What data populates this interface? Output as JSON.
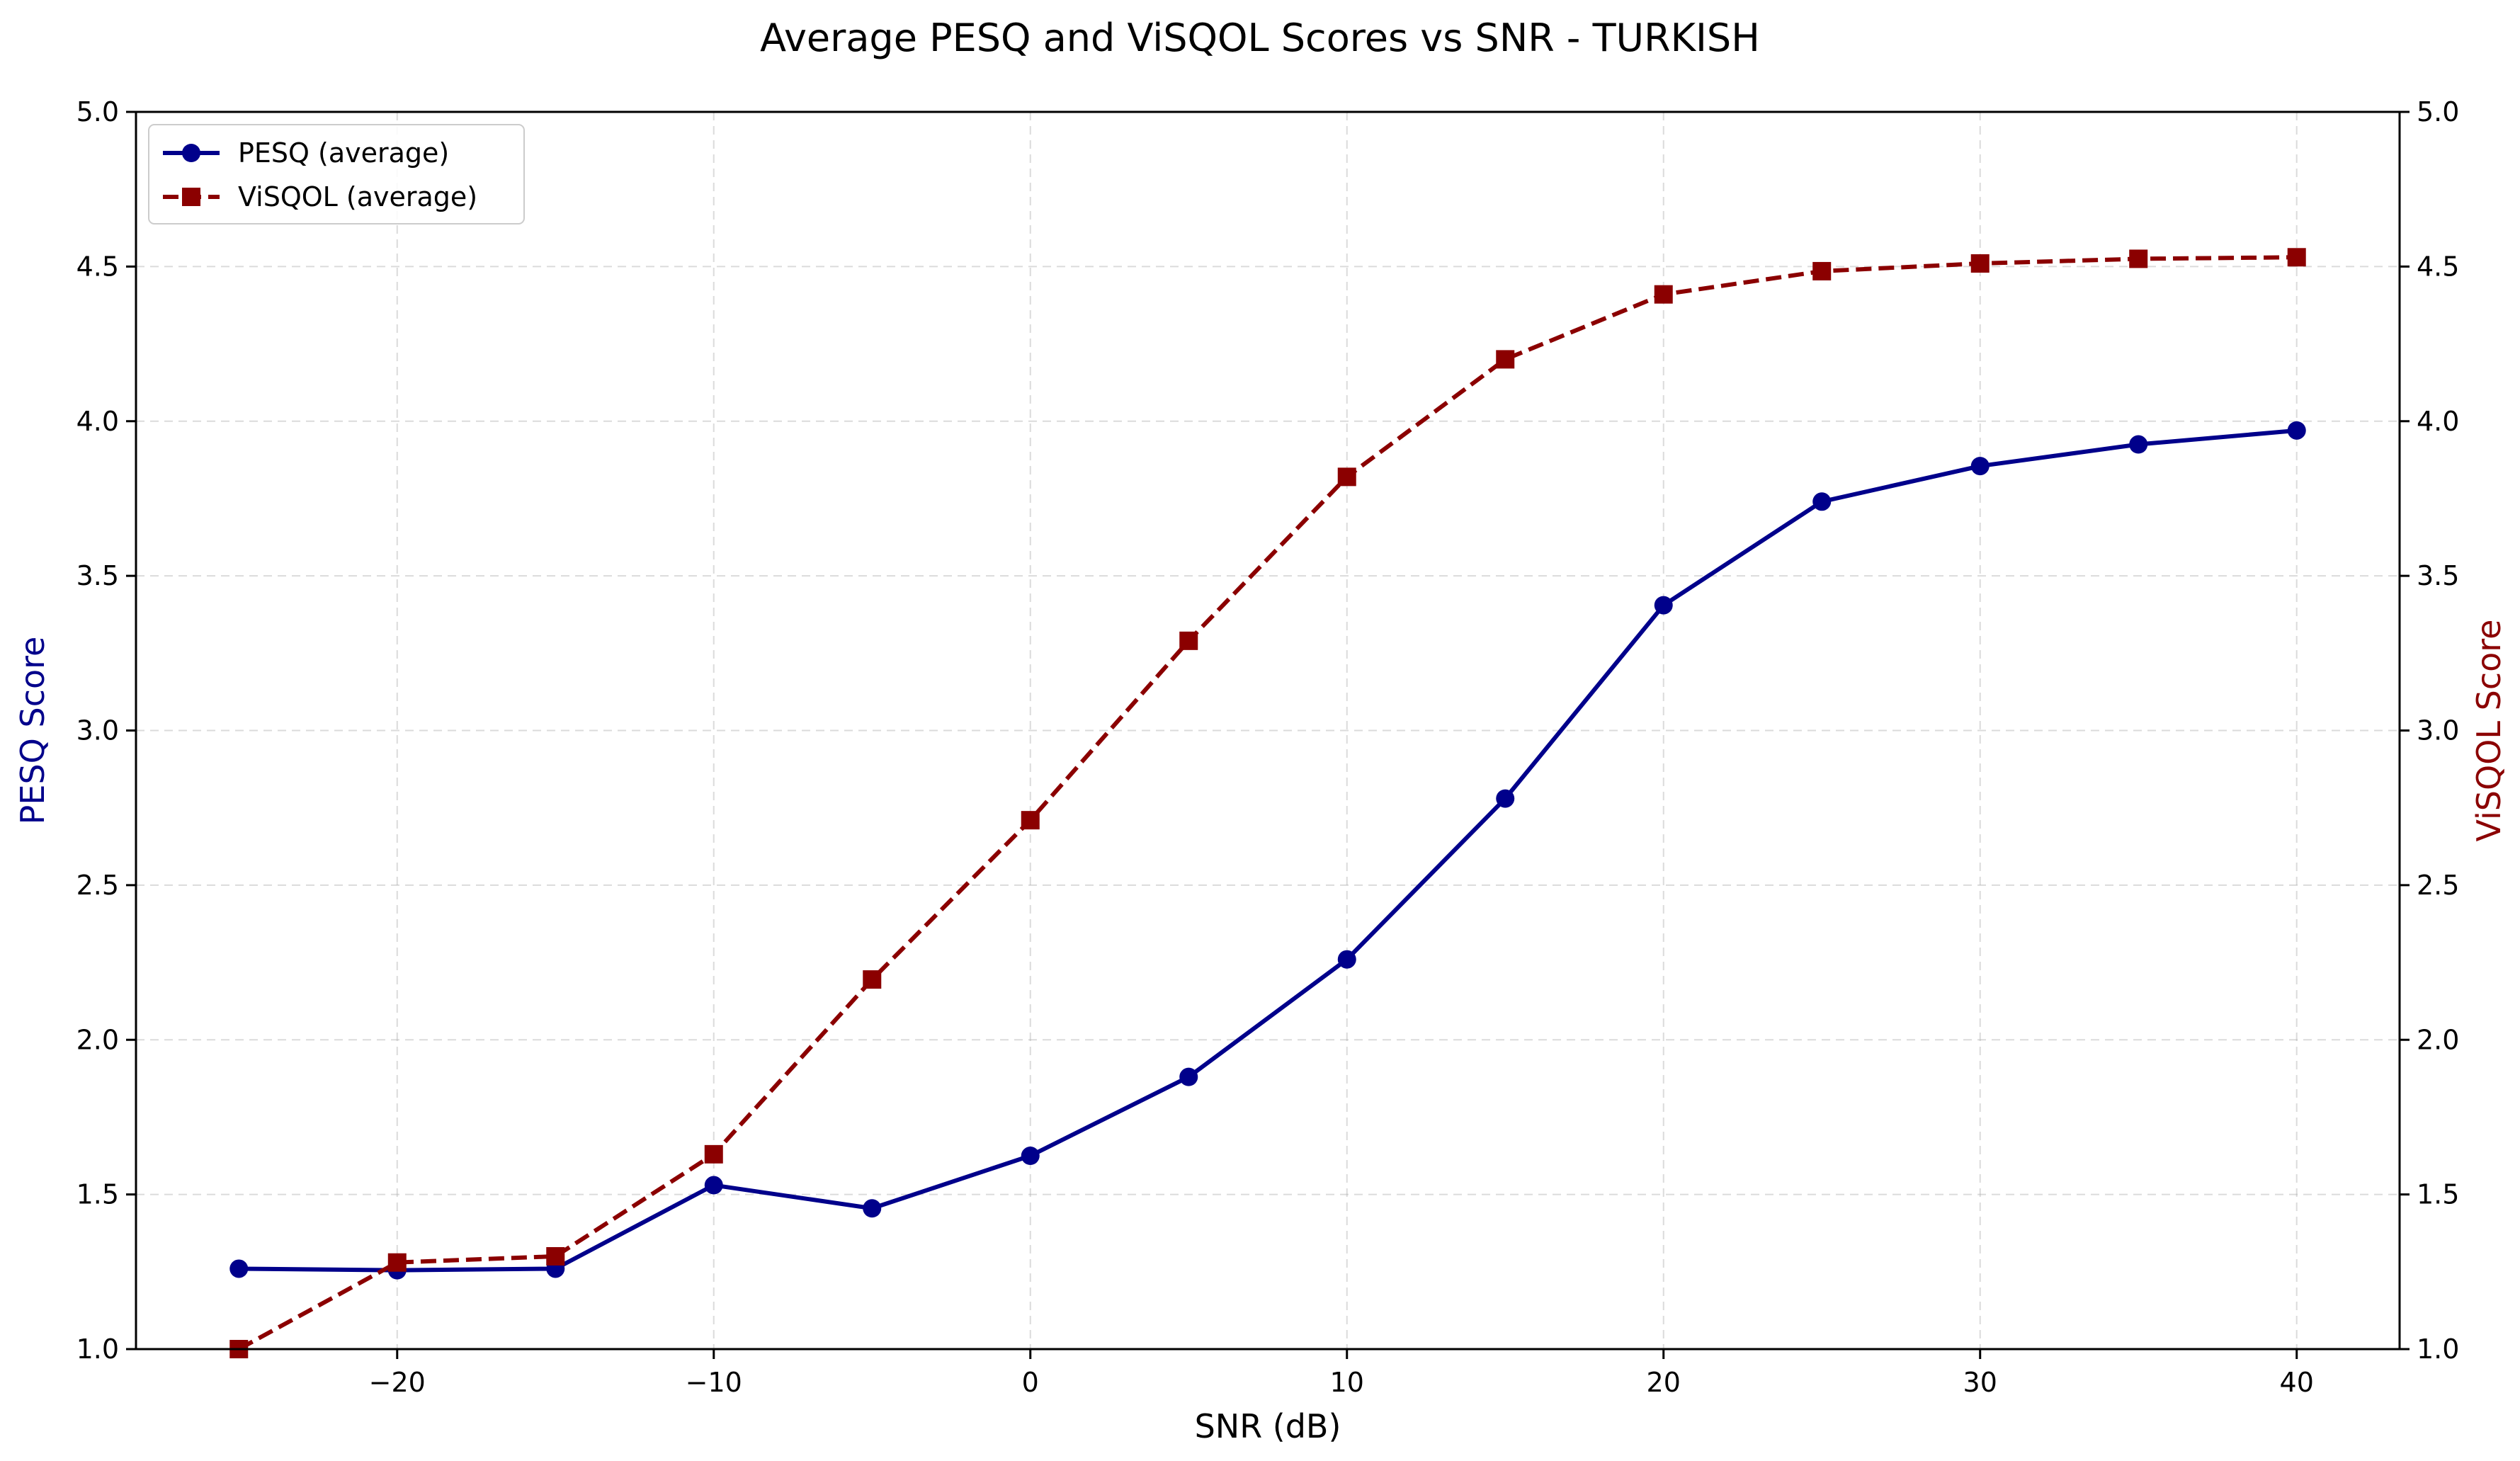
{
  "chart_data": {
    "type": "line",
    "title": "Average PESQ and ViSQOL Scores vs SNR - TURKISH",
    "xlabel": "SNR (dB)",
    "ylabel_left": "PESQ Score",
    "ylabel_right": "ViSQOL Score",
    "xlim": [
      -28.25,
      43.25
    ],
    "ylim_left": [
      1.0,
      5.0
    ],
    "ylim_right": [
      1.0,
      5.0
    ],
    "x_ticks": [
      -20,
      -10,
      0,
      10,
      20,
      30,
      40
    ],
    "x_tick_labels": [
      "−20",
      "−10",
      "0",
      "10",
      "20",
      "30",
      "40"
    ],
    "y_ticks": [
      1.0,
      1.5,
      2.0,
      2.5,
      3.0,
      3.5,
      4.0,
      4.5,
      5.0
    ],
    "y_tick_labels": [
      "1.0",
      "1.5",
      "2.0",
      "2.5",
      "3.0",
      "3.5",
      "4.0",
      "4.5",
      "5.0"
    ],
    "grid": true,
    "legend_position": "top-left",
    "x": [
      -25,
      -20,
      -15,
      -10,
      -5,
      0,
      5,
      10,
      15,
      20,
      25,
      30,
      35,
      40
    ],
    "series": [
      {
        "name": "PESQ (average)",
        "axis": "left",
        "color": "#00008b",
        "line_style": "solid",
        "marker": "circle",
        "values": [
          1.26,
          1.255,
          1.26,
          1.53,
          1.455,
          1.625,
          1.88,
          2.26,
          2.78,
          3.405,
          3.74,
          3.855,
          3.925,
          3.97
        ]
      },
      {
        "name": "ViSQOL (average)",
        "axis": "right",
        "color": "#8b0000",
        "line_style": "dashed",
        "marker": "square",
        "values": [
          1.0,
          1.28,
          1.3,
          1.63,
          2.195,
          2.71,
          3.29,
          3.82,
          4.2,
          4.41,
          4.485,
          4.51,
          4.525,
          4.53
        ]
      }
    ]
  }
}
